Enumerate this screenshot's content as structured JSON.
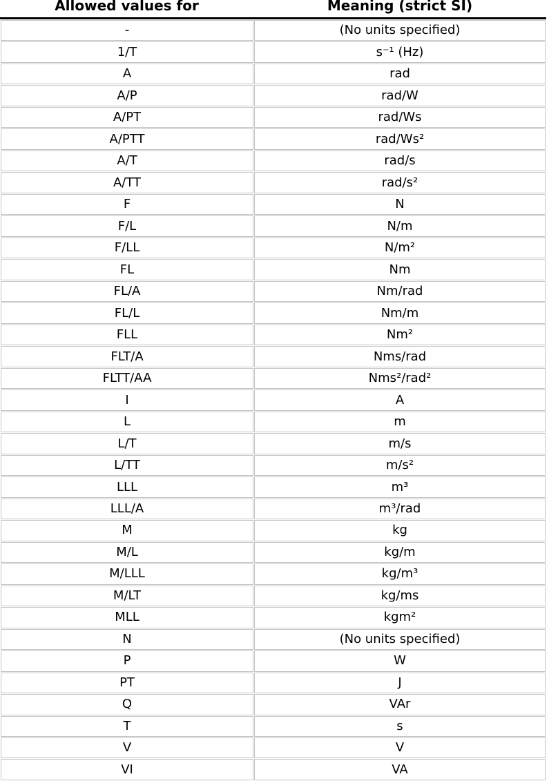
{
  "table": {
    "colors": {
      "border": "#c4c4c4",
      "top_border": "#000000",
      "text": "#000000",
      "bg": "#ffffff"
    },
    "headers": [
      {
        "label": "Allowed values for"
      },
      {
        "label": "Meaning (strict SI)"
      }
    ],
    "rows": [
      {
        "value": "-",
        "meaning": "(No units specified)"
      },
      {
        "value": "1/T",
        "meaning": "s⁻¹ (Hz)"
      },
      {
        "value": "A",
        "meaning": "rad"
      },
      {
        "value": "A/P",
        "meaning": "rad/W"
      },
      {
        "value": "A/PT",
        "meaning": "rad/Ws"
      },
      {
        "value": "A/PTT",
        "meaning": "rad/Ws²"
      },
      {
        "value": "A/T",
        "meaning": "rad/s"
      },
      {
        "value": "A/TT",
        "meaning": "rad/s²"
      },
      {
        "value": "F",
        "meaning": "N"
      },
      {
        "value": "F/L",
        "meaning": "N/m"
      },
      {
        "value": "F/LL",
        "meaning": "N/m²"
      },
      {
        "value": "FL",
        "meaning": "Nm"
      },
      {
        "value": "FL/A",
        "meaning": "Nm/rad"
      },
      {
        "value": "FL/L",
        "meaning": "Nm/m"
      },
      {
        "value": "FLL",
        "meaning": "Nm²"
      },
      {
        "value": "FLT/A",
        "meaning": "Nms/rad"
      },
      {
        "value": "FLTT/AA",
        "meaning": "Nms²/rad²"
      },
      {
        "value": "I",
        "meaning": "A"
      },
      {
        "value": "L",
        "meaning": "m"
      },
      {
        "value": "L/T",
        "meaning": "m/s"
      },
      {
        "value": "L/TT",
        "meaning": "m/s²"
      },
      {
        "value": "LLL",
        "meaning": "m³"
      },
      {
        "value": "LLL/A",
        "meaning": "m³/rad"
      },
      {
        "value": "M",
        "meaning": "kg"
      },
      {
        "value": "M/L",
        "meaning": "kg/m"
      },
      {
        "value": "M/LLL",
        "meaning": "kg/m³"
      },
      {
        "value": "M/LT",
        "meaning": "kg/ms"
      },
      {
        "value": "MLL",
        "meaning": "kgm²"
      },
      {
        "value": "N",
        "meaning": "(No units specified)"
      },
      {
        "value": "P",
        "meaning": "W"
      },
      {
        "value": "PT",
        "meaning": "J"
      },
      {
        "value": "Q",
        "meaning": "VAr"
      },
      {
        "value": "T",
        "meaning": "s"
      },
      {
        "value": "V",
        "meaning": "V"
      },
      {
        "value": "VI",
        "meaning": "VA"
      }
    ]
  }
}
